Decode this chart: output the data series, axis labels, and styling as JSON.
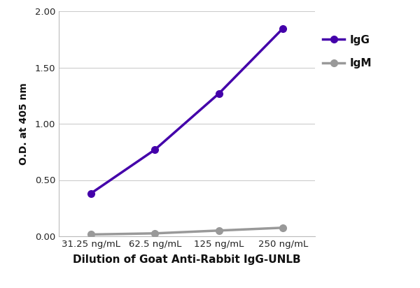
{
  "x_labels": [
    "31.25 ng/mL",
    "62.5 ng/mL",
    "125 ng/mL",
    "250 ng/mL"
  ],
  "x_values": [
    0,
    1,
    2,
    3
  ],
  "igg_values": [
    0.38,
    0.77,
    1.27,
    1.85
  ],
  "igm_values": [
    0.015,
    0.025,
    0.05,
    0.075
  ],
  "igg_color": "#4400aa",
  "igm_color": "#999999",
  "igg_label": "IgG",
  "igm_label": "IgM",
  "xlabel": "Dilution of Goat Anti-Rabbit IgG-UNLB",
  "ylabel": "O.D. at 405 nm",
  "ylim": [
    0.0,
    2.0
  ],
  "yticks": [
    0.0,
    0.5,
    1.0,
    1.5,
    2.0
  ],
  "background_color": "#ffffff",
  "grid_color": "#cccccc",
  "line_width": 2.5,
  "marker_size": 7,
  "marker_style": "o"
}
